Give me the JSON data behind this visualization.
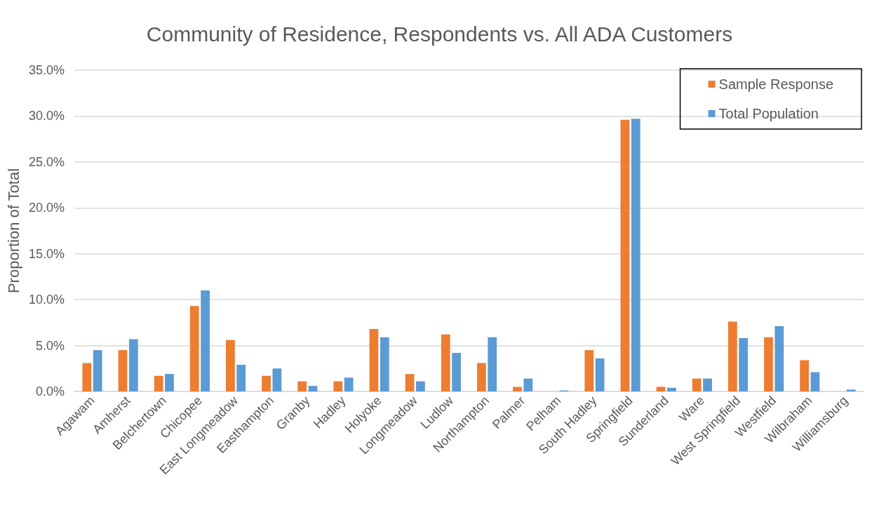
{
  "chart_data": {
    "type": "bar",
    "title": "Community of Residence, Respondents vs. All ADA Customers",
    "ylabel": "Proportion of Total",
    "categories": [
      "Agawam",
      "Amherst",
      "Belchertown",
      "Chicopee",
      "East Longmeadow",
      "Easthampton",
      "Granby",
      "Hadley",
      "Holyoke",
      "Longmeadow",
      "Ludlow",
      "Northampton",
      "Palmer",
      "Pelham",
      "South Hadley",
      "Springfield",
      "Sunderland",
      "Ware",
      "West Springfield",
      "Westfield",
      "Wilbraham",
      "Williamsburg"
    ],
    "series": [
      {
        "name": "Sample Response",
        "color": "#ed7d31",
        "values": [
          3.1,
          4.5,
          1.7,
          9.3,
          5.6,
          1.7,
          1.1,
          1.1,
          6.8,
          1.9,
          6.2,
          3.1,
          0.5,
          0,
          4.5,
          29.6,
          0.5,
          1.4,
          7.6,
          5.9,
          3.4,
          0
        ]
      },
      {
        "name": "Total Population",
        "color": "#5b9bd5",
        "values": [
          4.5,
          5.7,
          1.9,
          11.0,
          2.9,
          2.5,
          0.6,
          1.5,
          5.9,
          1.1,
          4.2,
          5.9,
          1.4,
          0.1,
          3.6,
          29.7,
          0.4,
          1.4,
          5.8,
          7.1,
          2.1,
          0.2
        ]
      }
    ],
    "ylim": [
      0,
      35
    ],
    "yticks": [
      {
        "value": 0,
        "label": "0.0%"
      },
      {
        "value": 5,
        "label": "5.0%"
      },
      {
        "value": 10,
        "label": "10.0%"
      },
      {
        "value": 15,
        "label": "15.0%"
      },
      {
        "value": 20,
        "label": "20.0%"
      },
      {
        "value": 25,
        "label": "25.0%"
      },
      {
        "value": 30,
        "label": "30.0%"
      },
      {
        "value": 35,
        "label": "35.0%"
      }
    ],
    "grid": "y",
    "legend": "top right"
  }
}
